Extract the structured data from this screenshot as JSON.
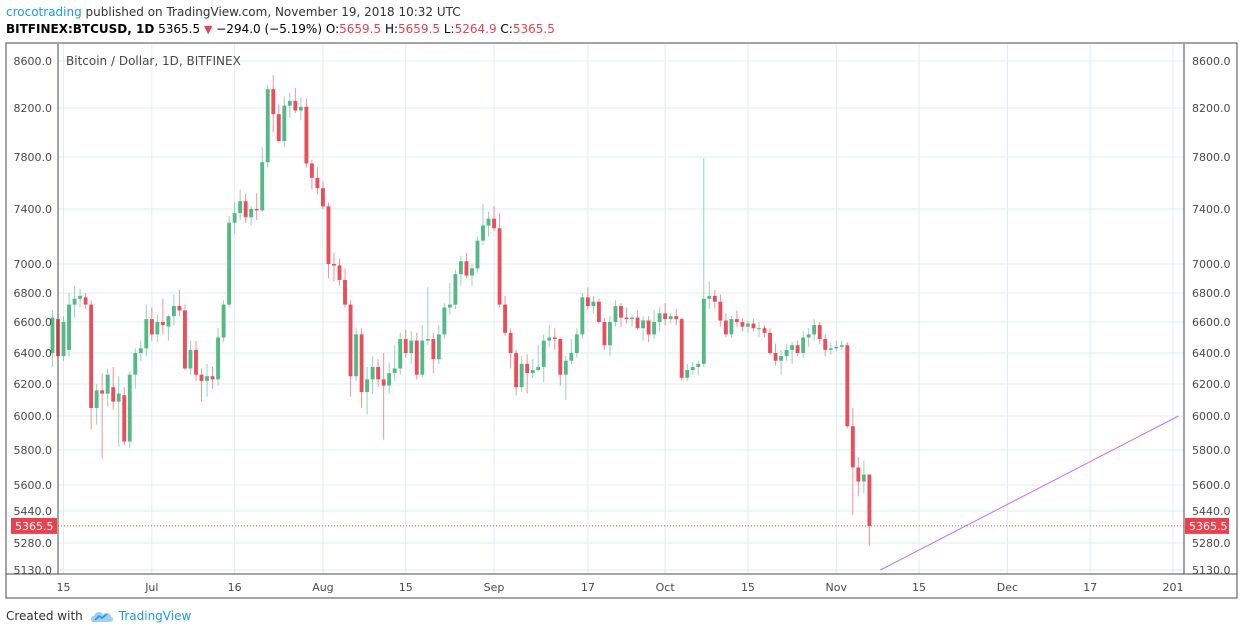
{
  "header": {
    "author": "crocotrading",
    "published": " published on TradingView.com, November 19, 2018 10:32 UTC",
    "symbol": "BITFINEX:BTCUSD, 1D",
    "last": "5365.5",
    "change": "−294.0 (−5.19%)",
    "o_label": "O:",
    "o": "5659.5",
    "h_label": "H:",
    "h": "5659.5",
    "l_label": "L:",
    "l": "5264.9",
    "c_label": "C:",
    "c": "5365.5"
  },
  "footer": {
    "created": "Created with",
    "brand": "TradingView"
  },
  "colors": {
    "up": "#53b987",
    "down": "#eb4d5c",
    "trendline": "#c86bf5",
    "price_label": "#e8424e",
    "grid": "#e1ecf2"
  },
  "chart_data": {
    "type": "candlestick",
    "title": "Bitcoin / Dollar, 1D, BITFINEX",
    "ylim": [
      5130,
      8700
    ],
    "y_ticks": [
      "8600.0",
      "8200.0",
      "7800.0",
      "7400.0",
      "7000.0",
      "6800.0",
      "6600.0",
      "6400.0",
      "6200.0",
      "6000.0",
      "5800.0",
      "5600.0",
      "5440.0",
      "5280.0",
      "5130.0"
    ],
    "y_tick_values": [
      8600,
      8200,
      7800,
      7400,
      7000,
      6800,
      6600,
      6400,
      6200,
      6000,
      5800,
      5600,
      5440,
      5280,
      5130
    ],
    "x_ticks": [
      "15",
      "Jul",
      "16",
      "Aug",
      "15",
      "Sep",
      "17",
      "Oct",
      "15",
      "Nov",
      "15",
      "Dec",
      "17",
      "201"
    ],
    "x_tick_days": [
      0,
      16,
      31,
      47,
      62,
      78,
      95,
      109,
      124,
      140,
      155,
      171,
      186,
      201
    ],
    "x_domain": [
      -1,
      203
    ],
    "last_price": 5365.5,
    "last_price_label": "5365.5",
    "trendline": {
      "from": {
        "day": 148,
        "price": 5130
      },
      "to": {
        "day": 202,
        "price": 6000
      }
    },
    "candles": [
      {
        "o": 6400,
        "h": 6680,
        "l": 6310,
        "c": 6630
      },
      {
        "o": 6620,
        "h": 6660,
        "l": 6390,
        "c": 6380
      },
      {
        "o": 6380,
        "h": 6640,
        "l": 6350,
        "c": 6600
      },
      {
        "o": 6420,
        "h": 6800,
        "l": 6380,
        "c": 6720
      },
      {
        "o": 6720,
        "h": 6850,
        "l": 6630,
        "c": 6760
      },
      {
        "o": 6760,
        "h": 6830,
        "l": 6700,
        "c": 6780
      },
      {
        "o": 6770,
        "h": 6800,
        "l": 6690,
        "c": 6720
      },
      {
        "o": 6720,
        "h": 6750,
        "l": 5920,
        "c": 6050
      },
      {
        "o": 6050,
        "h": 6200,
        "l": 5950,
        "c": 6160
      },
      {
        "o": 6160,
        "h": 6270,
        "l": 5750,
        "c": 6140
      },
      {
        "o": 6140,
        "h": 6300,
        "l": 6060,
        "c": 6260
      },
      {
        "o": 6180,
        "h": 6310,
        "l": 6040,
        "c": 6090
      },
      {
        "o": 6090,
        "h": 6250,
        "l": 5820,
        "c": 6140
      },
      {
        "o": 6130,
        "h": 6180,
        "l": 5830,
        "c": 5850
      },
      {
        "o": 5850,
        "h": 6280,
        "l": 5810,
        "c": 6260
      },
      {
        "o": 6260,
        "h": 6430,
        "l": 6170,
        "c": 6400
      },
      {
        "o": 6400,
        "h": 6480,
        "l": 6350,
        "c": 6430
      },
      {
        "o": 6430,
        "h": 6720,
        "l": 6380,
        "c": 6620
      },
      {
        "o": 6620,
        "h": 6700,
        "l": 6480,
        "c": 6520
      },
      {
        "o": 6520,
        "h": 6650,
        "l": 6470,
        "c": 6600
      },
      {
        "o": 6600,
        "h": 6760,
        "l": 6520,
        "c": 6580
      },
      {
        "o": 6570,
        "h": 6650,
        "l": 6480,
        "c": 6640
      },
      {
        "o": 6640,
        "h": 6790,
        "l": 6580,
        "c": 6710
      },
      {
        "o": 6710,
        "h": 6820,
        "l": 6640,
        "c": 6680
      },
      {
        "o": 6680,
        "h": 6720,
        "l": 6290,
        "c": 6300
      },
      {
        "o": 6300,
        "h": 6480,
        "l": 6260,
        "c": 6420
      },
      {
        "o": 6420,
        "h": 6480,
        "l": 6220,
        "c": 6260
      },
      {
        "o": 6260,
        "h": 6300,
        "l": 6090,
        "c": 6220
      },
      {
        "o": 6220,
        "h": 6330,
        "l": 6120,
        "c": 6250
      },
      {
        "o": 6250,
        "h": 6310,
        "l": 6170,
        "c": 6230
      },
      {
        "o": 6230,
        "h": 6560,
        "l": 6190,
        "c": 6500
      },
      {
        "o": 6500,
        "h": 6750,
        "l": 6470,
        "c": 6720
      },
      {
        "o": 6720,
        "h": 7350,
        "l": 6700,
        "c": 7300
      },
      {
        "o": 7300,
        "h": 7450,
        "l": 7220,
        "c": 7370
      },
      {
        "o": 7370,
        "h": 7550,
        "l": 7320,
        "c": 7460
      },
      {
        "o": 7460,
        "h": 7520,
        "l": 7300,
        "c": 7340
      },
      {
        "o": 7340,
        "h": 7420,
        "l": 7280,
        "c": 7400
      },
      {
        "o": 7400,
        "h": 7520,
        "l": 7320,
        "c": 7390
      },
      {
        "o": 7390,
        "h": 7880,
        "l": 7380,
        "c": 7760
      },
      {
        "o": 7760,
        "h": 8390,
        "l": 7720,
        "c": 8360
      },
      {
        "o": 8360,
        "h": 8480,
        "l": 8000,
        "c": 8150
      },
      {
        "o": 8150,
        "h": 8230,
        "l": 7920,
        "c": 7930
      },
      {
        "o": 7930,
        "h": 8300,
        "l": 7880,
        "c": 8220
      },
      {
        "o": 8220,
        "h": 8330,
        "l": 8120,
        "c": 8260
      },
      {
        "o": 8260,
        "h": 8370,
        "l": 8160,
        "c": 8180
      },
      {
        "o": 8180,
        "h": 8290,
        "l": 8100,
        "c": 8210
      },
      {
        "o": 8210,
        "h": 8280,
        "l": 7720,
        "c": 7750
      },
      {
        "o": 7750,
        "h": 7780,
        "l": 7550,
        "c": 7640
      },
      {
        "o": 7640,
        "h": 7720,
        "l": 7510,
        "c": 7560
      },
      {
        "o": 7560,
        "h": 7610,
        "l": 7400,
        "c": 7420
      },
      {
        "o": 7420,
        "h": 7450,
        "l": 6900,
        "c": 7000
      },
      {
        "o": 7000,
        "h": 7080,
        "l": 6880,
        "c": 6990
      },
      {
        "o": 6990,
        "h": 7040,
        "l": 6850,
        "c": 6890
      },
      {
        "o": 6890,
        "h": 6970,
        "l": 6700,
        "c": 6720
      },
      {
        "o": 6720,
        "h": 6750,
        "l": 6120,
        "c": 6250
      },
      {
        "o": 6250,
        "h": 6560,
        "l": 6220,
        "c": 6520
      },
      {
        "o": 6520,
        "h": 6560,
        "l": 6050,
        "c": 6150
      },
      {
        "o": 6150,
        "h": 6310,
        "l": 6010,
        "c": 6230
      },
      {
        "o": 6230,
        "h": 6380,
        "l": 6140,
        "c": 6310
      },
      {
        "o": 6310,
        "h": 6360,
        "l": 6180,
        "c": 6230
      },
      {
        "o": 6230,
        "h": 6400,
        "l": 5860,
        "c": 6190
      },
      {
        "o": 6190,
        "h": 6340,
        "l": 6140,
        "c": 6270
      },
      {
        "o": 6270,
        "h": 6450,
        "l": 6220,
        "c": 6300
      },
      {
        "o": 6300,
        "h": 6530,
        "l": 6260,
        "c": 6490
      },
      {
        "o": 6490,
        "h": 6550,
        "l": 6370,
        "c": 6400
      },
      {
        "o": 6400,
        "h": 6540,
        "l": 6330,
        "c": 6480
      },
      {
        "o": 6480,
        "h": 6530,
        "l": 6230,
        "c": 6260
      },
      {
        "o": 6260,
        "h": 6580,
        "l": 6240,
        "c": 6480
      },
      {
        "o": 6480,
        "h": 6840,
        "l": 6450,
        "c": 6490
      },
      {
        "o": 6490,
        "h": 6530,
        "l": 6270,
        "c": 6360
      },
      {
        "o": 6360,
        "h": 6580,
        "l": 6330,
        "c": 6520
      },
      {
        "o": 6520,
        "h": 6730,
        "l": 6490,
        "c": 6700
      },
      {
        "o": 6700,
        "h": 6870,
        "l": 6650,
        "c": 6720
      },
      {
        "o": 6720,
        "h": 6960,
        "l": 6690,
        "c": 6930
      },
      {
        "o": 6930,
        "h": 7060,
        "l": 6850,
        "c": 7020
      },
      {
        "o": 7020,
        "h": 7080,
        "l": 6900,
        "c": 6920
      },
      {
        "o": 6920,
        "h": 7000,
        "l": 6850,
        "c": 6970
      },
      {
        "o": 6970,
        "h": 7200,
        "l": 6940,
        "c": 7170
      },
      {
        "o": 7170,
        "h": 7440,
        "l": 7140,
        "c": 7280
      },
      {
        "o": 7280,
        "h": 7380,
        "l": 7200,
        "c": 7330
      },
      {
        "o": 7330,
        "h": 7420,
        "l": 7240,
        "c": 7260
      },
      {
        "o": 7260,
        "h": 7370,
        "l": 6700,
        "c": 6720
      },
      {
        "o": 6720,
        "h": 6780,
        "l": 6510,
        "c": 6530
      },
      {
        "o": 6530,
        "h": 6560,
        "l": 6300,
        "c": 6400
      },
      {
        "o": 6400,
        "h": 6420,
        "l": 6130,
        "c": 6180
      },
      {
        "o": 6180,
        "h": 6380,
        "l": 6150,
        "c": 6330
      },
      {
        "o": 6330,
        "h": 6390,
        "l": 6140,
        "c": 6270
      },
      {
        "o": 6270,
        "h": 6360,
        "l": 6240,
        "c": 6290
      },
      {
        "o": 6290,
        "h": 6450,
        "l": 6280,
        "c": 6310
      },
      {
        "o": 6310,
        "h": 6520,
        "l": 6210,
        "c": 6480
      },
      {
        "o": 6480,
        "h": 6580,
        "l": 6440,
        "c": 6500
      },
      {
        "o": 6500,
        "h": 6560,
        "l": 6420,
        "c": 6490
      },
      {
        "o": 6490,
        "h": 6500,
        "l": 6190,
        "c": 6260
      },
      {
        "o": 6260,
        "h": 6380,
        "l": 6100,
        "c": 6350
      },
      {
        "o": 6350,
        "h": 6490,
        "l": 6330,
        "c": 6400
      },
      {
        "o": 6400,
        "h": 6560,
        "l": 6370,
        "c": 6520
      },
      {
        "o": 6520,
        "h": 6800,
        "l": 6490,
        "c": 6770
      },
      {
        "o": 6770,
        "h": 6840,
        "l": 6680,
        "c": 6710
      },
      {
        "o": 6710,
        "h": 6780,
        "l": 6660,
        "c": 6740
      },
      {
        "o": 6740,
        "h": 6760,
        "l": 6590,
        "c": 6600
      },
      {
        "o": 6600,
        "h": 6630,
        "l": 6420,
        "c": 6450
      },
      {
        "o": 6450,
        "h": 6640,
        "l": 6380,
        "c": 6600
      },
      {
        "o": 6600,
        "h": 6750,
        "l": 6570,
        "c": 6710
      },
      {
        "o": 6710,
        "h": 6730,
        "l": 6570,
        "c": 6630
      },
      {
        "o": 6630,
        "h": 6700,
        "l": 6590,
        "c": 6620
      },
      {
        "o": 6620,
        "h": 6650,
        "l": 6570,
        "c": 6630
      },
      {
        "o": 6630,
        "h": 6680,
        "l": 6550,
        "c": 6560
      },
      {
        "o": 6560,
        "h": 6640,
        "l": 6480,
        "c": 6610
      },
      {
        "o": 6610,
        "h": 6640,
        "l": 6470,
        "c": 6520
      },
      {
        "o": 6520,
        "h": 6680,
        "l": 6490,
        "c": 6600
      },
      {
        "o": 6600,
        "h": 6700,
        "l": 6540,
        "c": 6660
      },
      {
        "o": 6660,
        "h": 6730,
        "l": 6580,
        "c": 6620
      },
      {
        "o": 6620,
        "h": 6660,
        "l": 6590,
        "c": 6640
      },
      {
        "o": 6640,
        "h": 6690,
        "l": 6580,
        "c": 6620
      },
      {
        "o": 6620,
        "h": 6630,
        "l": 6220,
        "c": 6240
      },
      {
        "o": 6240,
        "h": 6330,
        "l": 6220,
        "c": 6290
      },
      {
        "o": 6290,
        "h": 6340,
        "l": 6260,
        "c": 6310
      },
      {
        "o": 6310,
        "h": 6350,
        "l": 6260,
        "c": 6330
      },
      {
        "o": 6330,
        "h": 7790,
        "l": 6310,
        "c": 6760
      },
      {
        "o": 6760,
        "h": 6880,
        "l": 6690,
        "c": 6780
      },
      {
        "o": 6780,
        "h": 6820,
        "l": 6690,
        "c": 6740
      },
      {
        "o": 6740,
        "h": 6790,
        "l": 6570,
        "c": 6610
      },
      {
        "o": 6610,
        "h": 6660,
        "l": 6500,
        "c": 6520
      },
      {
        "o": 6520,
        "h": 6640,
        "l": 6500,
        "c": 6620
      },
      {
        "o": 6620,
        "h": 6680,
        "l": 6570,
        "c": 6600
      },
      {
        "o": 6600,
        "h": 6630,
        "l": 6540,
        "c": 6570
      },
      {
        "o": 6570,
        "h": 6610,
        "l": 6530,
        "c": 6590
      },
      {
        "o": 6590,
        "h": 6620,
        "l": 6540,
        "c": 6560
      },
      {
        "o": 6560,
        "h": 6600,
        "l": 6500,
        "c": 6560
      },
      {
        "o": 6560,
        "h": 6580,
        "l": 6500,
        "c": 6530
      },
      {
        "o": 6530,
        "h": 6560,
        "l": 6390,
        "c": 6400
      },
      {
        "o": 6400,
        "h": 6460,
        "l": 6320,
        "c": 6350
      },
      {
        "o": 6350,
        "h": 6420,
        "l": 6260,
        "c": 6380
      },
      {
        "o": 6380,
        "h": 6460,
        "l": 6350,
        "c": 6420
      },
      {
        "o": 6420,
        "h": 6470,
        "l": 6330,
        "c": 6450
      },
      {
        "o": 6450,
        "h": 6480,
        "l": 6380,
        "c": 6400
      },
      {
        "o": 6400,
        "h": 6540,
        "l": 6370,
        "c": 6500
      },
      {
        "o": 6500,
        "h": 6560,
        "l": 6440,
        "c": 6520
      },
      {
        "o": 6520,
        "h": 6620,
        "l": 6480,
        "c": 6580
      },
      {
        "o": 6580,
        "h": 6600,
        "l": 6460,
        "c": 6490
      },
      {
        "o": 6490,
        "h": 6520,
        "l": 6380,
        "c": 6420
      },
      {
        "o": 6420,
        "h": 6470,
        "l": 6390,
        "c": 6430
      },
      {
        "o": 6430,
        "h": 6480,
        "l": 6410,
        "c": 6440
      },
      {
        "o": 6440,
        "h": 6480,
        "l": 6420,
        "c": 6450
      },
      {
        "o": 6450,
        "h": 6470,
        "l": 5930,
        "c": 5940
      },
      {
        "o": 5940,
        "h": 6050,
        "l": 5420,
        "c": 5700
      },
      {
        "o": 5700,
        "h": 5760,
        "l": 5530,
        "c": 5620
      },
      {
        "o": 5620,
        "h": 5740,
        "l": 5550,
        "c": 5659.5
      },
      {
        "o": 5659.5,
        "h": 5659.5,
        "l": 5264.9,
        "c": 5365.5
      }
    ],
    "candle_start_day": -2
  }
}
